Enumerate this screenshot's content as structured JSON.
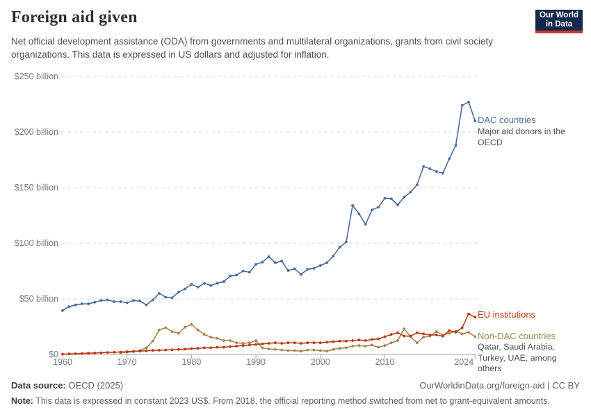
{
  "header": {
    "title": "Foreign aid given",
    "subtitle": "Net official development assistance (ODA) from governments and multilateral organizations, grants from civil society organizations. This data is expressed in US dollars and adjusted for inflation.",
    "logo": {
      "line1": "Our World",
      "line2": "in Data"
    }
  },
  "chart_data": {
    "type": "line",
    "title": "Foreign aid given",
    "grid": true,
    "legend_position": "right-annotations",
    "ylim": [
      0,
      250
    ],
    "xlim": [
      1960,
      2024
    ],
    "yticks": [
      {
        "value": 0,
        "label": "$0"
      },
      {
        "value": 50,
        "label": "$50 billion"
      },
      {
        "value": 100,
        "label": "$100 billion"
      },
      {
        "value": 150,
        "label": "$150 billion"
      },
      {
        "value": 200,
        "label": "$200 billion"
      },
      {
        "value": 250,
        "label": "$250 billion"
      }
    ],
    "xticks": [
      {
        "value": 1960,
        "label": "1960"
      },
      {
        "value": 1970,
        "label": "1970"
      },
      {
        "value": 1980,
        "label": "1980"
      },
      {
        "value": 1990,
        "label": "1990"
      },
      {
        "value": 2000,
        "label": "2000"
      },
      {
        "value": 2010,
        "label": "2010"
      },
      {
        "value": 2024,
        "label": "2024"
      }
    ],
    "x": [
      1960,
      1961,
      1962,
      1963,
      1964,
      1965,
      1966,
      1967,
      1968,
      1969,
      1970,
      1971,
      1972,
      1973,
      1974,
      1975,
      1976,
      1977,
      1978,
      1979,
      1980,
      1981,
      1982,
      1983,
      1984,
      1985,
      1986,
      1987,
      1988,
      1989,
      1990,
      1991,
      1992,
      1993,
      1994,
      1995,
      1996,
      1997,
      1998,
      1999,
      2000,
      2001,
      2002,
      2003,
      2004,
      2005,
      2006,
      2007,
      2008,
      2009,
      2010,
      2011,
      2012,
      2013,
      2014,
      2015,
      2016,
      2017,
      2018,
      2019,
      2020,
      2021,
      2022,
      2023,
      2024
    ],
    "series": [
      {
        "name": "DAC countries",
        "annotation": "Major aid donors in the OECD",
        "color": "#4c6b9e",
        "values": [
          39.5,
          43,
          44.5,
          45.5,
          45.5,
          47,
          48.5,
          49,
          47.5,
          47.5,
          46.5,
          48.5,
          48,
          44.5,
          49,
          55,
          51.5,
          51,
          56,
          59,
          63,
          60.5,
          64,
          62,
          64,
          65.5,
          70.5,
          71.5,
          75,
          74,
          81,
          83,
          88,
          82.5,
          84,
          75.5,
          77,
          72,
          76.5,
          77.5,
          80,
          82.5,
          88.5,
          96.5,
          101,
          134,
          126.5,
          117,
          130,
          132.5,
          140.5,
          140,
          134.5,
          141.5,
          146,
          152.5,
          169,
          167,
          164.5,
          163,
          176,
          188,
          224,
          227,
          210
        ]
      },
      {
        "name": "EU institutions",
        "annotation": "",
        "color": "#b93a12",
        "values": [
          0.3,
          0.5,
          0.7,
          0.9,
          1.1,
          1.3,
          1.5,
          1.8,
          2,
          2.2,
          2.5,
          2.8,
          3,
          3.3,
          3.6,
          3.8,
          4,
          4.2,
          4.5,
          4.8,
          5.2,
          5.5,
          6,
          6,
          6.5,
          6.5,
          7,
          7.5,
          8,
          8.5,
          9,
          9.5,
          10,
          10.5,
          10,
          10.5,
          10.5,
          10,
          10.5,
          10.5,
          10.5,
          11,
          11.5,
          12,
          12,
          12.5,
          13,
          12.5,
          13.5,
          14,
          16,
          18,
          19.5,
          16.5,
          16.5,
          19.5,
          18.5,
          17.5,
          17.5,
          16.5,
          21.5,
          20,
          24,
          36.5,
          33.5
        ]
      },
      {
        "name": "Non-DAC countries",
        "annotation": "Qatar, Saudi Arabia, Turkey, UAE, among others",
        "color": "#a6854d",
        "values": [
          null,
          null,
          null,
          null,
          null,
          null,
          null,
          null,
          null,
          1.5,
          2,
          2.5,
          3.5,
          6,
          12,
          22,
          24,
          20.5,
          19,
          24.5,
          27,
          22,
          18,
          15.5,
          14.5,
          12.5,
          12.5,
          10.5,
          10,
          10.5,
          12.5,
          6,
          5,
          4.5,
          4,
          3.5,
          3.5,
          3,
          4,
          4,
          3.5,
          3,
          4.5,
          5.5,
          6,
          7.5,
          8,
          7.5,
          8.5,
          6.5,
          8,
          10.5,
          12.5,
          23,
          16,
          10.5,
          15.5,
          16.5,
          20.5,
          17.5,
          19,
          21,
          18.5,
          20,
          16
        ]
      }
    ]
  },
  "footer": {
    "data_source_label": "Data source:",
    "data_source": "OECD (2025)",
    "attribution": "OurWorldinData.org/foreign-aid | CC BY",
    "note_label": "Note:",
    "note": "This data is expressed in constant 2023 US$. From 2018, the official reporting method switched from net to grant-equivalent amounts."
  },
  "colors": {
    "grid": "#d9d9d9",
    "axis": "#a3a3a3",
    "tick": "#a3a3a3"
  }
}
